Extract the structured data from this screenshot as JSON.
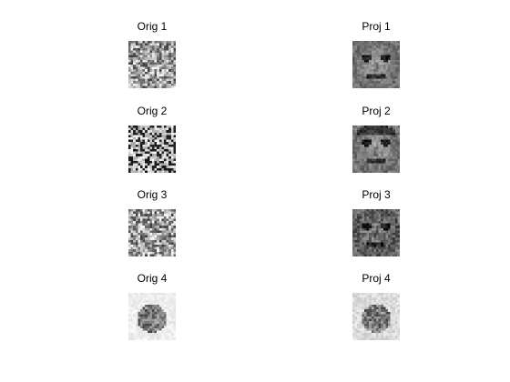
{
  "figure": {
    "background": "#ffffff",
    "panels": [
      {
        "title": "Orig 1",
        "column": "original",
        "row": 1
      },
      {
        "title": "Proj 1",
        "column": "projection",
        "row": 1
      },
      {
        "title": "Orig 2",
        "column": "original",
        "row": 2
      },
      {
        "title": "Proj 2",
        "column": "projection",
        "row": 2
      },
      {
        "title": "Orig 3",
        "column": "original",
        "row": 3
      },
      {
        "title": "Proj 3",
        "column": "projection",
        "row": 3
      },
      {
        "title": "Orig 4",
        "column": "original",
        "row": 4
      },
      {
        "title": "Proj 4",
        "column": "projection",
        "row": 4
      }
    ],
    "colormap": "gray"
  }
}
